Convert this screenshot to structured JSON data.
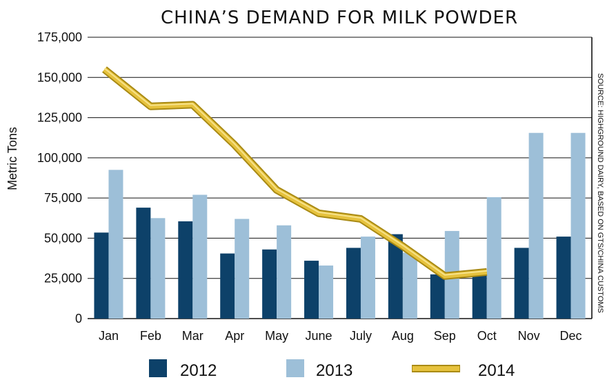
{
  "colors": {
    "s2012": "#0d4169",
    "s2013": "#9dbfd8",
    "s2014": "#e6c23d",
    "s2014_edge": "#a98a14",
    "grid": "#111111"
  },
  "chart_data": {
    "type": "bar",
    "title": "CHINA’S DEMAND FOR MILK POWDER",
    "ylabel": "Metric Tons",
    "xlabel": "",
    "source": "SOURCE: HIGHGROUND DAIRY, BASED ON GTS/CHINA CUSTOMS",
    "ylim": [
      0,
      175000
    ],
    "yticks": [
      0,
      25000,
      50000,
      75000,
      100000,
      125000,
      150000,
      175000
    ],
    "ytick_labels": [
      "0",
      "25,000",
      "50,000",
      "75,000",
      "100,000",
      "125,000",
      "150,000",
      "175,000"
    ],
    "grid": true,
    "legend_position": "bottom",
    "categories": [
      "Jan",
      "Feb",
      "Mar",
      "Apr",
      "May",
      "June",
      "July",
      "Aug",
      "Sep",
      "Oct",
      "Nov",
      "Dec"
    ],
    "series": [
      {
        "name": "2012",
        "type": "bar",
        "color_key": "s2012",
        "values": [
          53500,
          69000,
          60500,
          40500,
          43000,
          36000,
          44000,
          52500,
          27500,
          27500,
          44000,
          51000
        ]
      },
      {
        "name": "2013",
        "type": "bar",
        "color_key": "s2013",
        "values": [
          92500,
          62500,
          77000,
          62000,
          58000,
          33000,
          51000,
          41000,
          54500,
          75500,
          115500,
          115500
        ]
      },
      {
        "name": "2014",
        "type": "line",
        "color_key": "s2014",
        "values": [
          155000,
          132000,
          133000,
          108000,
          80000,
          65500,
          62000,
          45000,
          26500,
          29000,
          null,
          null
        ]
      }
    ]
  }
}
